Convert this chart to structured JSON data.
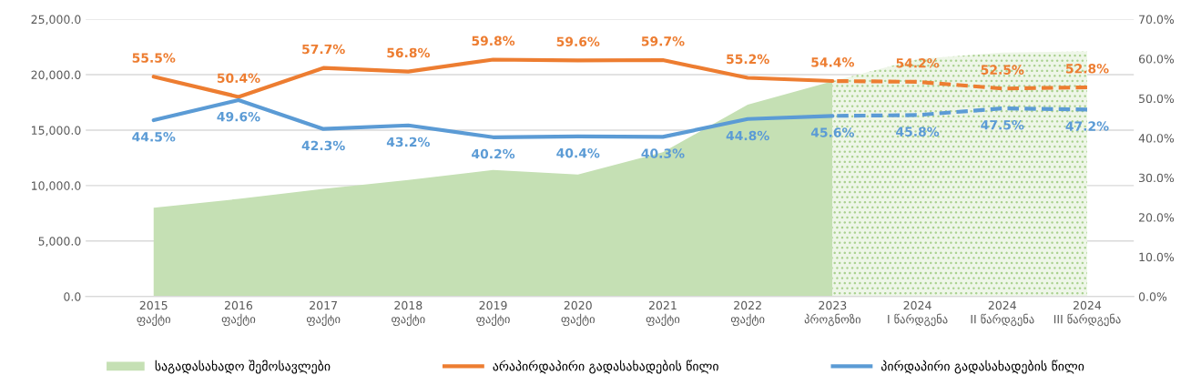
{
  "chart_data": {
    "type": "line",
    "categories": [
      "2015\nფაქტი",
      "2016\nფაქტი",
      "2017\nფაქტი",
      "2018\nფაქტი",
      "2019\nფაქტი",
      "2020\nფაქტი",
      "2021\nფაქტი",
      "2022\nფაქტი",
      "2023\nპროგნოზი",
      "2024\nI წარდგენა",
      "2024\nII წარდგენა",
      "2024\nIII წარდგენა"
    ],
    "series": [
      {
        "name": "საგადასახადო შემოსავლები",
        "type": "area",
        "color": "#c5e0b4",
        "values": [
          8000,
          8800,
          9700,
          10500,
          11400,
          11000,
          13000,
          17300,
          19400,
          null,
          null,
          null
        ]
      },
      {
        "type": "area",
        "color": "#a9d18e",
        "line_style": "dotted",
        "values": [
          null,
          null,
          null,
          null,
          null,
          null,
          null,
          null,
          19400,
          21400,
          22000,
          22100
        ]
      },
      {
        "name": "არაპირდაპირი გადასახადების წილი",
        "axis": "y2",
        "color": "#ed7d31",
        "line_style": "solid",
        "values": [
          55.5,
          50.4,
          57.7,
          56.8,
          59.8,
          59.6,
          59.7,
          55.2,
          54.4,
          null,
          null,
          null
        ],
        "value_labels": [
          "55.5%",
          "50.4%",
          "57.7%",
          "56.8%",
          "59.8%",
          "59.6%",
          "59.7%",
          "55.2%",
          "54.4%",
          null,
          null,
          null
        ]
      },
      {
        "axis": "y2",
        "color": "#ed7d31",
        "line_style": "dashed",
        "values": [
          null,
          null,
          null,
          null,
          null,
          null,
          null,
          null,
          54.4,
          54.2,
          52.5,
          52.8
        ],
        "value_labels": [
          null,
          null,
          null,
          null,
          null,
          null,
          null,
          null,
          null,
          "54.2%",
          "52.5%",
          "52.8%"
        ]
      },
      {
        "name": "პირდაპირი გადასახადების წილი",
        "axis": "y2",
        "color": "#5b9bd5",
        "line_style": "solid",
        "values": [
          44.5,
          49.6,
          42.3,
          43.2,
          40.2,
          40.4,
          40.3,
          44.8,
          45.6,
          null,
          null,
          null
        ],
        "value_labels": [
          "44.5%",
          "49.6%",
          "42.3%",
          "43.2%",
          "40.2%",
          "40.4%",
          "40.3%",
          "44.8%",
          "45.6%",
          null,
          null,
          null
        ]
      },
      {
        "axis": "y2",
        "color": "#5b9bd5",
        "line_style": "dashed",
        "values": [
          null,
          null,
          null,
          null,
          null,
          null,
          null,
          null,
          45.6,
          45.8,
          47.5,
          47.2
        ],
        "value_labels": [
          null,
          null,
          null,
          null,
          null,
          null,
          null,
          null,
          null,
          "45.8%",
          "47.5%",
          "47.2%"
        ]
      }
    ],
    "ylim": [
      0,
      25000
    ],
    "yticks": [
      {
        "value": 0,
        "label": "0.0"
      },
      {
        "value": 5000,
        "label": "5,000.0"
      },
      {
        "value": 10000,
        "label": "10,000.0"
      },
      {
        "value": 15000,
        "label": "15,000.0"
      },
      {
        "value": 20000,
        "label": "20,000.0"
      },
      {
        "value": 25000,
        "label": "25,000.0"
      }
    ],
    "y2lim": [
      0,
      70
    ],
    "y2ticks": [
      {
        "value": 0,
        "label": "0.0%"
      },
      {
        "value": 10,
        "label": "10.0%"
      },
      {
        "value": 20,
        "label": "20.0%"
      },
      {
        "value": 30,
        "label": "30.0%"
      },
      {
        "value": 40,
        "label": "40.0%"
      },
      {
        "value": 50,
        "label": "50.0%"
      },
      {
        "value": 60,
        "label": "60.0%"
      },
      {
        "value": 70,
        "label": "70.0%"
      }
    ],
    "grid": "y",
    "legend": "bottom"
  }
}
